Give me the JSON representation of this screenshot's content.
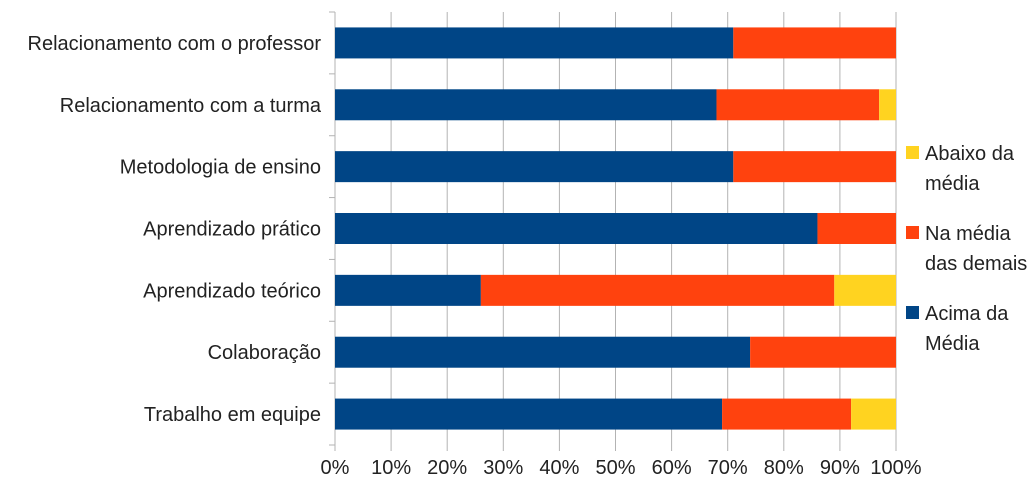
{
  "chart_data": {
    "type": "bar",
    "orientation": "horizontal",
    "stacked": "percent",
    "categories": [
      "Relacionamento com o professor",
      "Relacionamento com a turma",
      "Metodologia de ensino",
      "Aprendizado prático",
      "Aprendizado teórico",
      "Colaboração",
      "Trabalho em equipe"
    ],
    "series": [
      {
        "name": "Acima da Média",
        "color": "#004586",
        "values": [
          71,
          68,
          71,
          86,
          26,
          74,
          69
        ]
      },
      {
        "name": "Na média das demais",
        "color": "#ff420e",
        "values": [
          29,
          29,
          29,
          14,
          63,
          26,
          23
        ]
      },
      {
        "name": "Abaixo da média",
        "color": "#ffd320",
        "values": [
          0,
          3,
          0,
          0,
          11,
          0,
          8
        ]
      }
    ],
    "x_ticks": [
      "0%",
      "10%",
      "20%",
      "30%",
      "40%",
      "50%",
      "60%",
      "70%",
      "80%",
      "90%",
      "100%"
    ],
    "xlim": [
      0,
      100
    ],
    "grid": "vertical",
    "legend": {
      "position": "right",
      "entries": [
        {
          "series": 2,
          "lines": [
            "Abaixo da",
            "média"
          ]
        },
        {
          "series": 1,
          "lines": [
            "Na média",
            "das demais"
          ]
        },
        {
          "series": 0,
          "lines": [
            "Acima da",
            "Média"
          ]
        }
      ]
    }
  }
}
